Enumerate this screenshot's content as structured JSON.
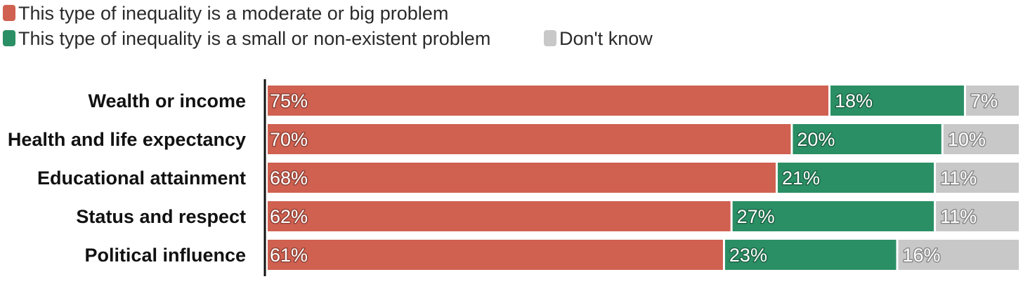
{
  "chart_data": {
    "type": "bar",
    "orientation": "horizontal",
    "stacked": true,
    "categories": [
      "Wealth or income",
      "Health and life expectancy",
      "Educational attainment",
      "Status and respect",
      "Political influence"
    ],
    "series": [
      {
        "name": "This type of inequality is a moderate or big problem",
        "color": "#d06050",
        "values": [
          75,
          70,
          68,
          62,
          61
        ],
        "labels": [
          "75%",
          "70%",
          "68%",
          "62%",
          "61%"
        ]
      },
      {
        "name": "This type of inequality is a small or non-existent problem",
        "color": "#2a8f64",
        "values": [
          18,
          20,
          21,
          27,
          23
        ],
        "labels": [
          "18%",
          "20%",
          "21%",
          "27%",
          "23%"
        ]
      },
      {
        "name": "Don't know",
        "color": "#c8c8c8",
        "values": [
          7,
          10,
          11,
          11,
          16
        ],
        "labels": [
          "7%",
          "10%",
          "11%",
          "11%",
          "16%"
        ]
      }
    ],
    "xlim": [
      0,
      100
    ],
    "grid": false,
    "legend_position": "top-left"
  }
}
